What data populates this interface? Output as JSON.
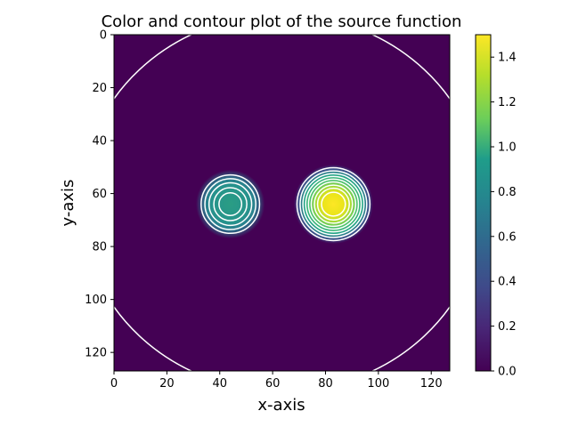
{
  "chart_data": {
    "type": "heatmap",
    "title": "Color and contour plot of the source function",
    "xlabel": "x-axis",
    "ylabel": "y-axis",
    "xlim": [
      0,
      127
    ],
    "ylim": [
      127,
      0
    ],
    "y_inverted": true,
    "x_ticks": [
      "0",
      "20",
      "40",
      "60",
      "80",
      "100",
      "120"
    ],
    "y_ticks": [
      "0",
      "20",
      "40",
      "60",
      "80",
      "100",
      "120"
    ],
    "colormap": "viridis",
    "colorbar": {
      "min": 0.0,
      "max": 1.5,
      "ticks": [
        "0.0",
        "0.2",
        "0.4",
        "0.6",
        "0.8",
        "1.0",
        "1.2",
        "1.4"
      ]
    },
    "background_value": 0.0,
    "sources": [
      {
        "center_x": 44,
        "center_y": 64,
        "peak_value": 0.88,
        "radius": 13
      },
      {
        "center_x": 83,
        "center_y": 64,
        "peak_value": 1.5,
        "radius": 15
      }
    ],
    "contour_color": "#ffffff",
    "outer_contour": "elliptical boundary contour near the plot edges"
  }
}
